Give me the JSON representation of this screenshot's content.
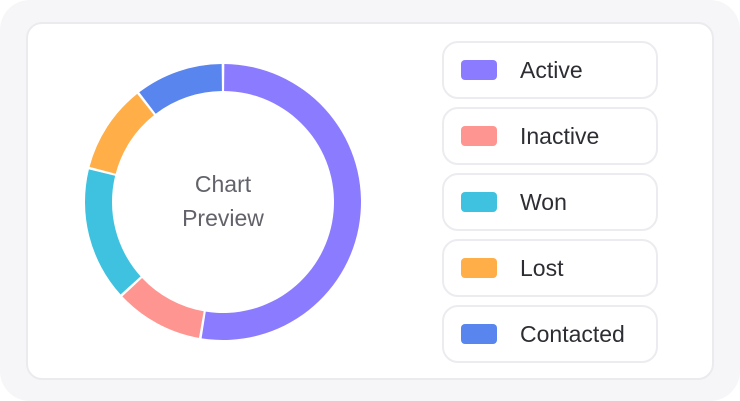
{
  "chart_data": {
    "type": "pie",
    "center_label_line1": "Chart",
    "center_label_line2": "Preview",
    "series": [
      {
        "name": "Active",
        "value": 50,
        "color": "#8b7cff"
      },
      {
        "name": "Inactive",
        "value": 10,
        "color": "#ff9590"
      },
      {
        "name": "Won",
        "value": 15,
        "color": "#3fc2df"
      },
      {
        "name": "Lost",
        "value": 10,
        "color": "#ffae48"
      },
      {
        "name": "Contacted",
        "value": 10,
        "color": "#5985ee"
      }
    ]
  },
  "legend": {
    "items": [
      {
        "label": "Active",
        "color": "#8b7cff"
      },
      {
        "label": "Inactive",
        "color": "#ff9590"
      },
      {
        "label": "Won",
        "color": "#3fc2df"
      },
      {
        "label": "Lost",
        "color": "#ffae48"
      },
      {
        "label": "Contacted",
        "color": "#5985ee"
      }
    ]
  }
}
